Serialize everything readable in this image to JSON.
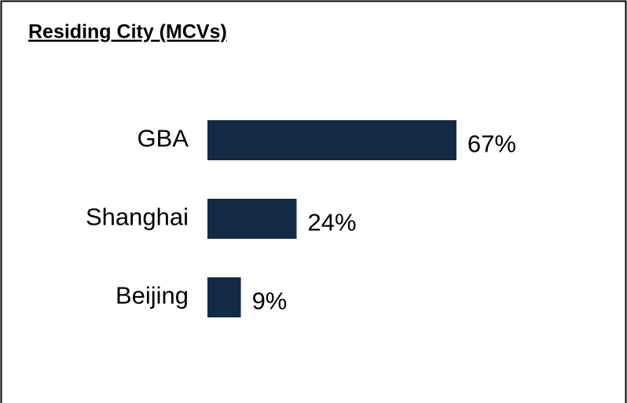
{
  "chart_data": {
    "type": "bar",
    "orientation": "horizontal",
    "title": "Residing City (MCVs)",
    "categories": [
      "GBA",
      "Shanghai",
      "Beijing"
    ],
    "values": [
      67,
      24,
      9
    ],
    "value_labels": [
      "67%",
      "24%",
      "9%"
    ],
    "color": "#132a45"
  }
}
